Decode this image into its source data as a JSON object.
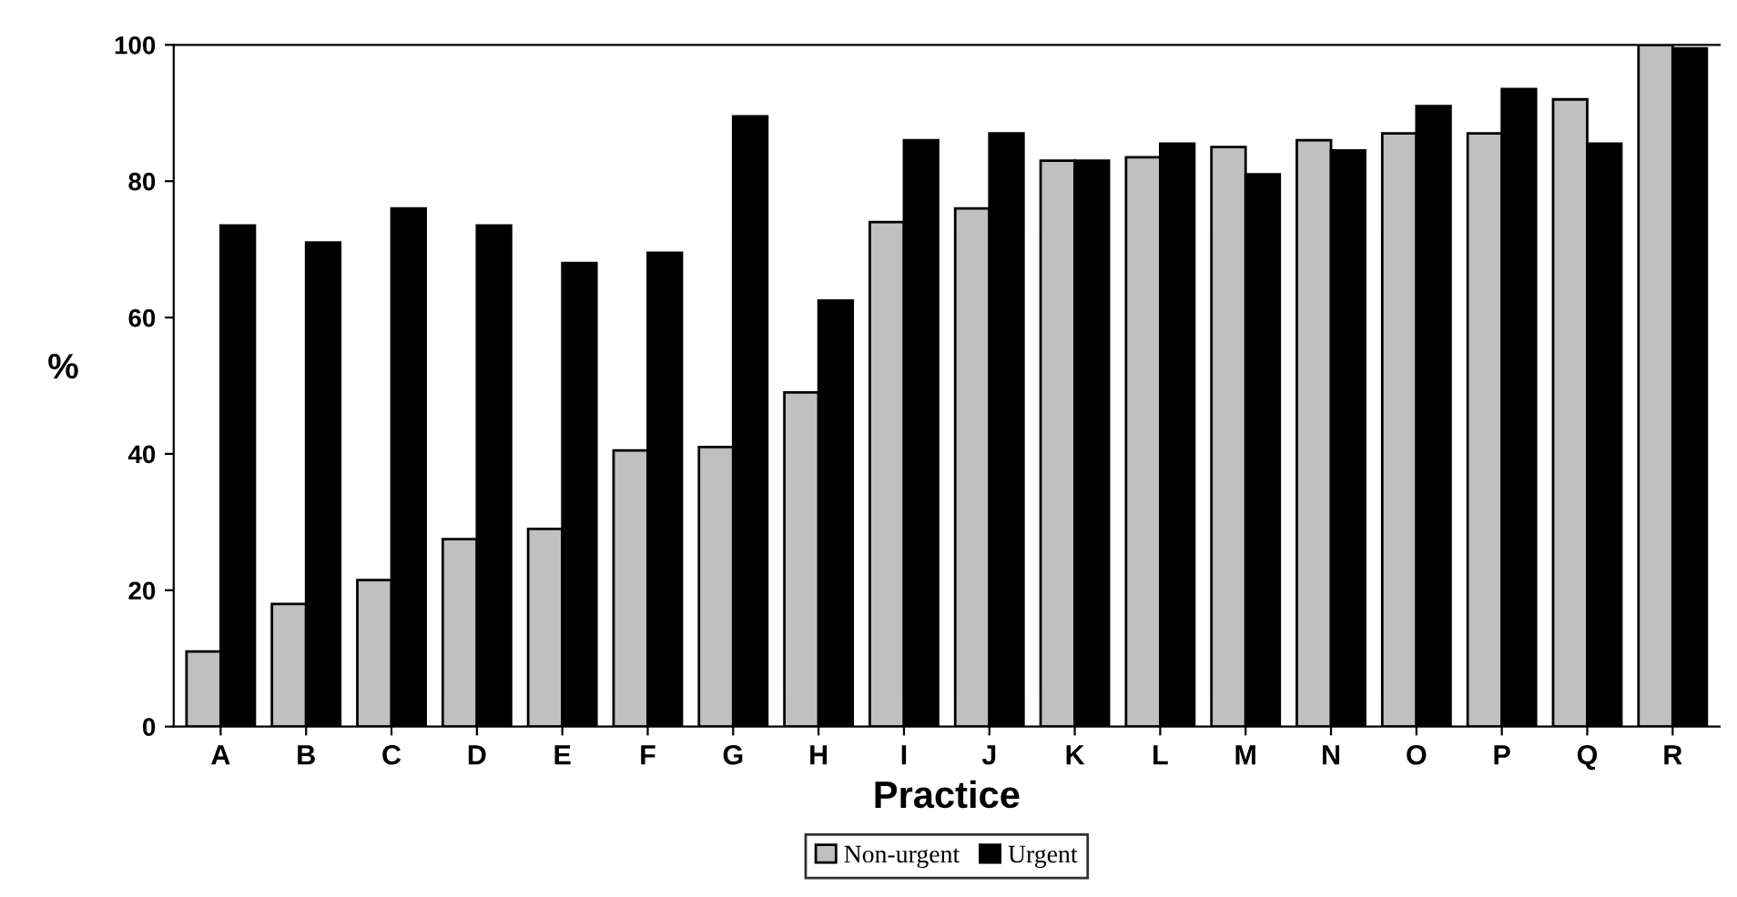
{
  "chart_data": {
    "type": "bar",
    "xlabel": "Practice",
    "ylabel": "%",
    "categories": [
      "A",
      "B",
      "C",
      "D",
      "E",
      "F",
      "G",
      "H",
      "I",
      "J",
      "K",
      "L",
      "M",
      "N",
      "O",
      "P",
      "Q",
      "R"
    ],
    "series": [
      {
        "name": "Non-urgent",
        "color": "#c0c0c0",
        "values": [
          11,
          18,
          21.5,
          27.5,
          29,
          40.5,
          41,
          49,
          74,
          76,
          83,
          83.5,
          85,
          86,
          87,
          87,
          92,
          100
        ]
      },
      {
        "name": "Urgent",
        "color": "#000000",
        "values": [
          73.5,
          71,
          76,
          73.5,
          68,
          69.5,
          89.5,
          62.5,
          86,
          87,
          83,
          85.5,
          81,
          84.5,
          91,
          93.5,
          85.5,
          99.5
        ]
      }
    ],
    "ylim": [
      0,
      100
    ],
    "yticks": [
      0,
      20,
      40,
      60,
      80,
      100
    ],
    "grid": false,
    "legend": "bottom"
  }
}
